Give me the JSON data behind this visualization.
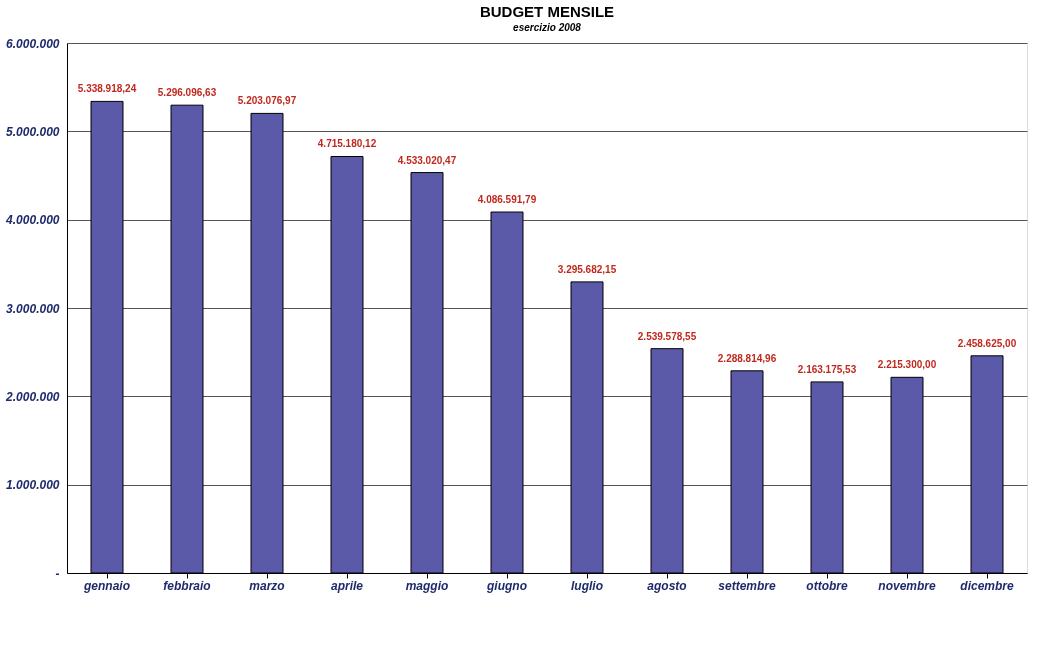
{
  "chart_data": {
    "type": "bar",
    "title": "BUDGET MENSILE",
    "subtitle": "esercizio 2008",
    "categories": [
      "gennaio",
      "febbraio",
      "marzo",
      "aprile",
      "maggio",
      "giugno",
      "luglio",
      "agosto",
      "settembre",
      "ottobre",
      "novembre",
      "dicembre"
    ],
    "values": [
      5338918.24,
      5296096.63,
      5203076.97,
      4715180.12,
      4533020.47,
      4086591.79,
      3295682.15,
      2539578.55,
      2288814.96,
      2163175.53,
      2215300.0,
      2458625.0
    ],
    "value_labels": [
      "5.338.918,24",
      "5.296.096,63",
      "5.203.076,97",
      "4.715.180,12",
      "4.533.020,47",
      "4.086.591,79",
      "3.295.682,15",
      "2.539.578,55",
      "2.288.814,96",
      "2.163.175,53",
      "2.215.300,00",
      "2.458.625,00"
    ],
    "color": "#5b5aa8",
    "ylim": [
      0,
      6000000
    ],
    "yticks": [
      {
        "value": 0,
        "label": "-"
      },
      {
        "value": 1000000,
        "label": "1.000.000"
      },
      {
        "value": 2000000,
        "label": "2.000.000"
      },
      {
        "value": 3000000,
        "label": "3.000.000"
      },
      {
        "value": 4000000,
        "label": "4.000.000"
      },
      {
        "value": 5000000,
        "label": "5.000.000"
      },
      {
        "value": 6000000,
        "label": "6.000.000"
      }
    ],
    "grid": "y"
  }
}
